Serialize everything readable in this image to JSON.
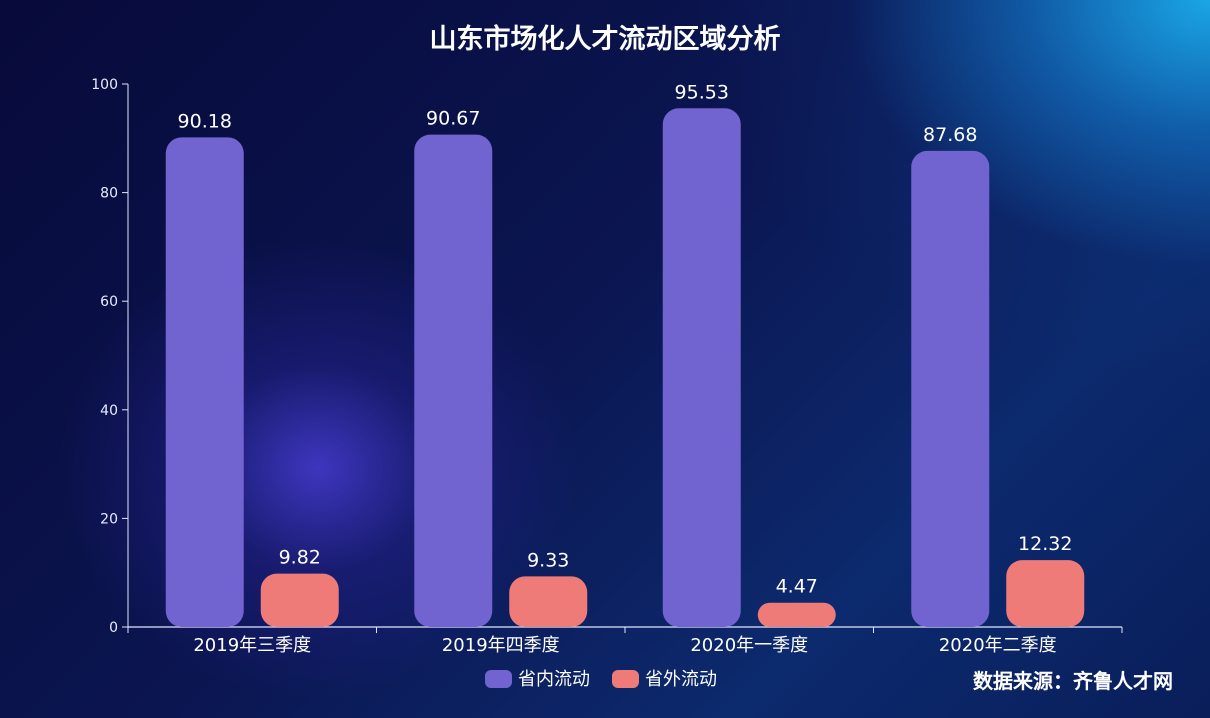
{
  "chart_data": {
    "type": "bar",
    "title": "山东市场化人才流动区域分析",
    "categories": [
      "2019年三季度",
      "2019年四季度",
      "2020年一季度",
      "2020年二季度"
    ],
    "series": [
      {
        "name": "省内流动",
        "values": [
          90.18,
          90.67,
          95.53,
          87.68
        ],
        "color": "#7163d0"
      },
      {
        "name": "省外流动",
        "values": [
          9.82,
          9.33,
          4.47,
          12.32
        ],
        "color": "#ef7b78"
      }
    ],
    "ylim": [
      0,
      100
    ],
    "yticks": [
      0,
      20,
      40,
      60,
      80,
      100
    ],
    "grid": false,
    "legend": "bottom-center",
    "source": "数据来源：齐鲁人才网"
  }
}
